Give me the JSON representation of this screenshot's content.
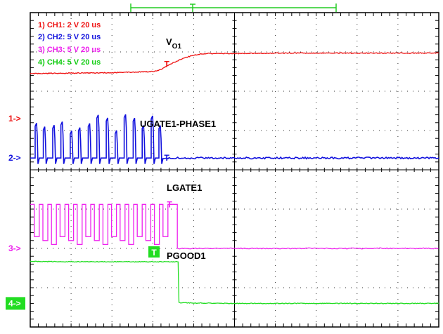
{
  "chart_data": {
    "type": "line",
    "title": "",
    "xlabel": "",
    "ylabel": "",
    "grid": true,
    "divisions": {
      "x": 10,
      "y": 8
    },
    "xlim": [
      0,
      10
    ],
    "ylim": [
      0,
      8
    ],
    "legend": [
      {
        "label": "1) CH1: 2  V   20 us",
        "color": "#ee1111"
      },
      {
        "label": "2) CH2: 5  V   20 us",
        "color": "#1111dd"
      },
      {
        "label": "3) CH3: 5  V   20 us",
        "color": "#ee22ee"
      },
      {
        "label": "4) CH4: 5  V   20 us",
        "color": "#11cc11"
      }
    ],
    "annotations": {
      "vo1": {
        "main": "V",
        "sub": "O1"
      },
      "ugate": "UGATE1-PHASE1",
      "lgate": "LGATE1",
      "pgood": "PGOOD1"
    },
    "channel_markers": [
      {
        "label": "1->",
        "color": "#ee1111",
        "level": 5.3,
        "boxed": false
      },
      {
        "label": "2->",
        "color": "#1111dd",
        "level": 4.3,
        "boxed": false
      },
      {
        "label": "3->",
        "color": "#ee22ee",
        "level": 2.0,
        "boxed": false
      },
      {
        "label": "4->",
        "color": "#ffffff",
        "background": "#22dd22",
        "level": 0.6,
        "boxed": true
      }
    ],
    "trigger": {
      "x": 3.45,
      "label": "T",
      "color": "#22dd22"
    },
    "series": [
      {
        "name": "CH1",
        "color": "#ee1111",
        "points": [
          [
            0,
            6.45
          ],
          [
            1,
            6.46
          ],
          [
            2,
            6.47
          ],
          [
            3,
            6.5
          ],
          [
            3.2,
            6.55
          ],
          [
            3.45,
            6.7
          ],
          [
            3.7,
            6.82
          ],
          [
            4,
            6.92
          ],
          [
            4.3,
            6.96
          ],
          [
            5,
            6.96
          ],
          [
            6,
            6.97
          ],
          [
            7,
            6.97
          ],
          [
            8,
            6.97
          ],
          [
            9,
            6.97
          ],
          [
            10,
            6.97
          ]
        ]
      },
      {
        "name": "CH2",
        "color": "#1111dd",
        "baseline": 4.3,
        "high": 5.08,
        "burst_end": 3.25,
        "pulse_x": [
          0.12,
          0.32,
          0.55,
          0.75,
          0.98,
          1.18,
          1.42,
          1.63,
          1.86,
          2.08,
          2.3,
          2.52,
          2.74,
          2.96,
          3.15
        ]
      },
      {
        "name": "CH3",
        "color": "#ee22ee",
        "baseline": 2.0,
        "high": 3.12,
        "low": 2.3,
        "drop_x": 3.6,
        "tail_x": 3.45,
        "pulse_x": [
          0.1,
          0.31,
          0.52,
          0.73,
          0.94,
          1.15,
          1.36,
          1.57,
          1.78,
          1.99,
          2.2,
          2.41,
          2.62,
          2.83,
          3.04,
          3.25
        ]
      },
      {
        "name": "CH4",
        "color": "#22dd22",
        "points": [
          [
            0,
            1.67
          ],
          [
            1,
            1.66
          ],
          [
            2,
            1.66
          ],
          [
            3,
            1.66
          ],
          [
            3.62,
            1.66
          ],
          [
            3.64,
            0.62
          ],
          [
            4,
            0.61
          ],
          [
            5,
            0.6
          ],
          [
            6,
            0.6
          ],
          [
            7,
            0.6
          ],
          [
            8,
            0.6
          ],
          [
            9,
            0.6
          ],
          [
            10,
            0.6
          ]
        ]
      }
    ]
  }
}
